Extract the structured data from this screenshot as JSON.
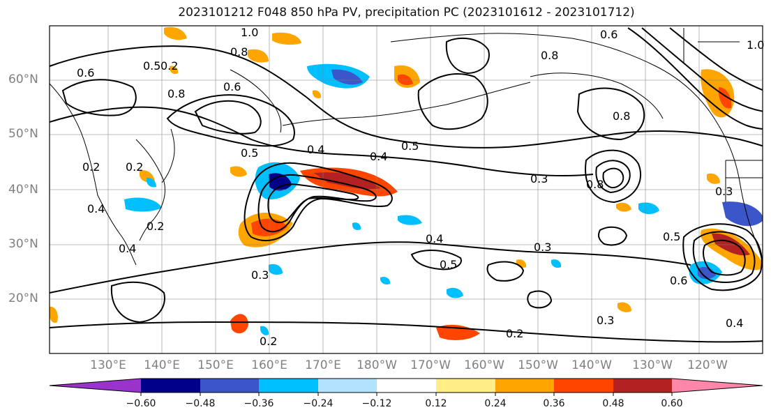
{
  "map": {
    "title": "2023101212 F048 850 hPa PV, precipitation PC (2023101612 - 2023101712)",
    "lat_ticks": [
      "60°N",
      "50°N",
      "40°N",
      "30°N",
      "20°N"
    ],
    "lon_ticks": [
      "130°E",
      "140°E",
      "150°E",
      "160°E",
      "170°E",
      "180°W",
      "170°W",
      "160°W",
      "150°W",
      "140°W",
      "130°W",
      "120°W"
    ],
    "contour_labels": [
      "1.0",
      "0.8",
      "0.6",
      "0.5",
      "0.8",
      "0.6",
      "0.4",
      "0.5",
      "0.2",
      "0.4",
      "0.3",
      "0.5",
      "0.4",
      "0.3",
      "0.4",
      "0.5",
      "0.3",
      "0.2",
      "0.2",
      "0.3",
      "0.4",
      "0.8",
      "0.6",
      "0.5",
      "0.8",
      "0.2",
      "0.2",
      "0.4",
      "0.6",
      "0.8",
      "0.3",
      "1.0",
      "0.2"
    ],
    "colorbar": {
      "ticks": [
        "−0.60",
        "−0.48",
        "−0.36",
        "−0.24",
        "−0.12",
        "0.12",
        "0.24",
        "0.36",
        "0.48",
        "0.60"
      ],
      "colors": [
        "#9933cc",
        "#00008b",
        "#3a56c8",
        "#00bfff",
        "#b3e2ff",
        "#ffffff",
        "#ffee88",
        "#ffa500",
        "#ff4500",
        "#b22222",
        "#ff88aa"
      ]
    }
  }
}
